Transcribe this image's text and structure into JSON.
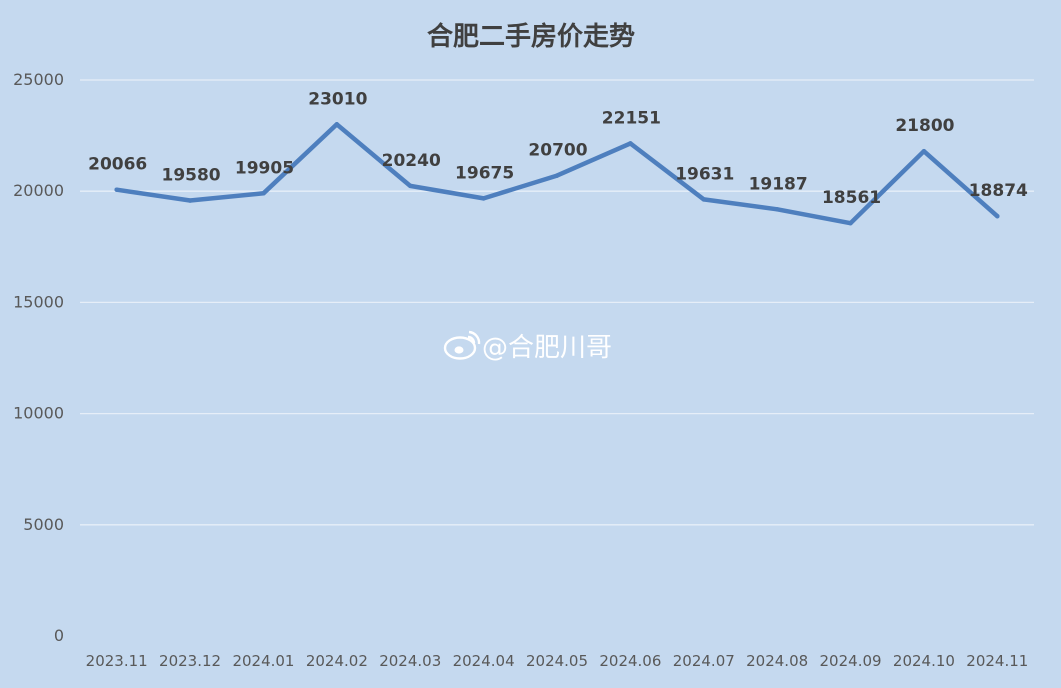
{
  "chart_data": {
    "type": "line",
    "title": "合肥二手房价走势",
    "categories": [
      "2023.11",
      "2023.12",
      "2024.01",
      "2024.02",
      "2024.03",
      "2024.04",
      "2024.05",
      "2024.06",
      "2024.07",
      "2024.08",
      "2024.09",
      "2024.10",
      "2024.11"
    ],
    "series": [
      {
        "values": [
          20066,
          19580,
          19905,
          23010,
          20240,
          19675,
          20700,
          22151,
          19631,
          19187,
          18561,
          21800,
          18874
        ],
        "color": "#4e7fbe"
      }
    ],
    "data_labels": [
      "20066",
      "19580",
      "19905",
      "23010",
      "20240",
      "19675",
      "20700",
      "22151",
      "19631",
      "19187",
      "18561",
      "21800",
      "18874"
    ],
    "yticks": [
      "0",
      "5000",
      "10000",
      "15000",
      "20000",
      "25000"
    ],
    "ylim": [
      0,
      25000
    ],
    "grid": true,
    "legend": "none",
    "background_color": "#c5d9ef",
    "watermark": "@合肥川哥"
  }
}
